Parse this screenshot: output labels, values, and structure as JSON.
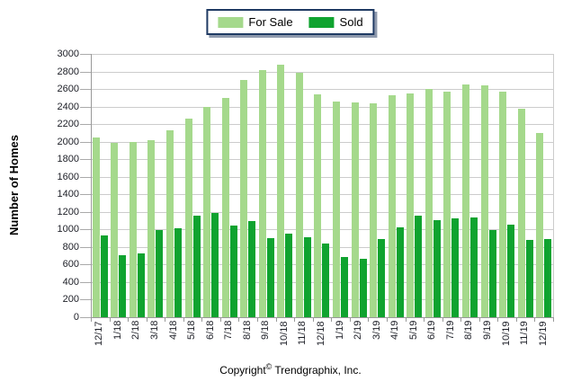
{
  "legend": {
    "items": [
      {
        "label": "For Sale",
        "color": "#a5d98c"
      },
      {
        "label": "Sold",
        "color": "#0fa32f"
      }
    ]
  },
  "chart_data": {
    "type": "bar",
    "title": "",
    "xlabel": "",
    "ylabel": "Number of Homes",
    "ylim": [
      0,
      3000
    ],
    "ytick_step": 200,
    "grid": true,
    "legend_position": "top-center",
    "categories": [
      "12/17",
      "1/18",
      "2/18",
      "3/18",
      "4/18",
      "5/18",
      "6/18",
      "7/18",
      "8/18",
      "9/18",
      "10/18",
      "11/18",
      "12/18",
      "1/19",
      "2/19",
      "3/19",
      "4/19",
      "5/19",
      "6/19",
      "7/19",
      "8/19",
      "9/19",
      "10/19",
      "11/19",
      "12/19"
    ],
    "series": [
      {
        "name": "For Sale",
        "color": "#a5d98c",
        "values": [
          2050,
          1990,
          2000,
          2020,
          2130,
          2260,
          2400,
          2500,
          2700,
          2820,
          2880,
          2790,
          2540,
          2460,
          2450,
          2440,
          2530,
          2550,
          2600,
          2570,
          2650,
          2640,
          2570,
          2380,
          2100
        ]
      },
      {
        "name": "Sold",
        "color": "#0fa32f",
        "values": [
          930,
          710,
          730,
          990,
          1010,
          1160,
          1190,
          1040,
          1100,
          900,
          950,
          910,
          840,
          690,
          670,
          890,
          1020,
          1160,
          1110,
          1130,
          1140,
          990,
          1050,
          880,
          890
        ]
      }
    ]
  },
  "footer": {
    "copyright_prefix": "Copyright",
    "copyright_symbol": "©",
    "copyright_suffix": "Trendgraphix, Inc."
  },
  "colors": {
    "for_sale_green": "#a5d98c",
    "sold_green": "#0fa32f",
    "legend_border_navy": "#1f3a63",
    "gridline_gray": "#cccccc",
    "axis_gray": "#999999"
  }
}
